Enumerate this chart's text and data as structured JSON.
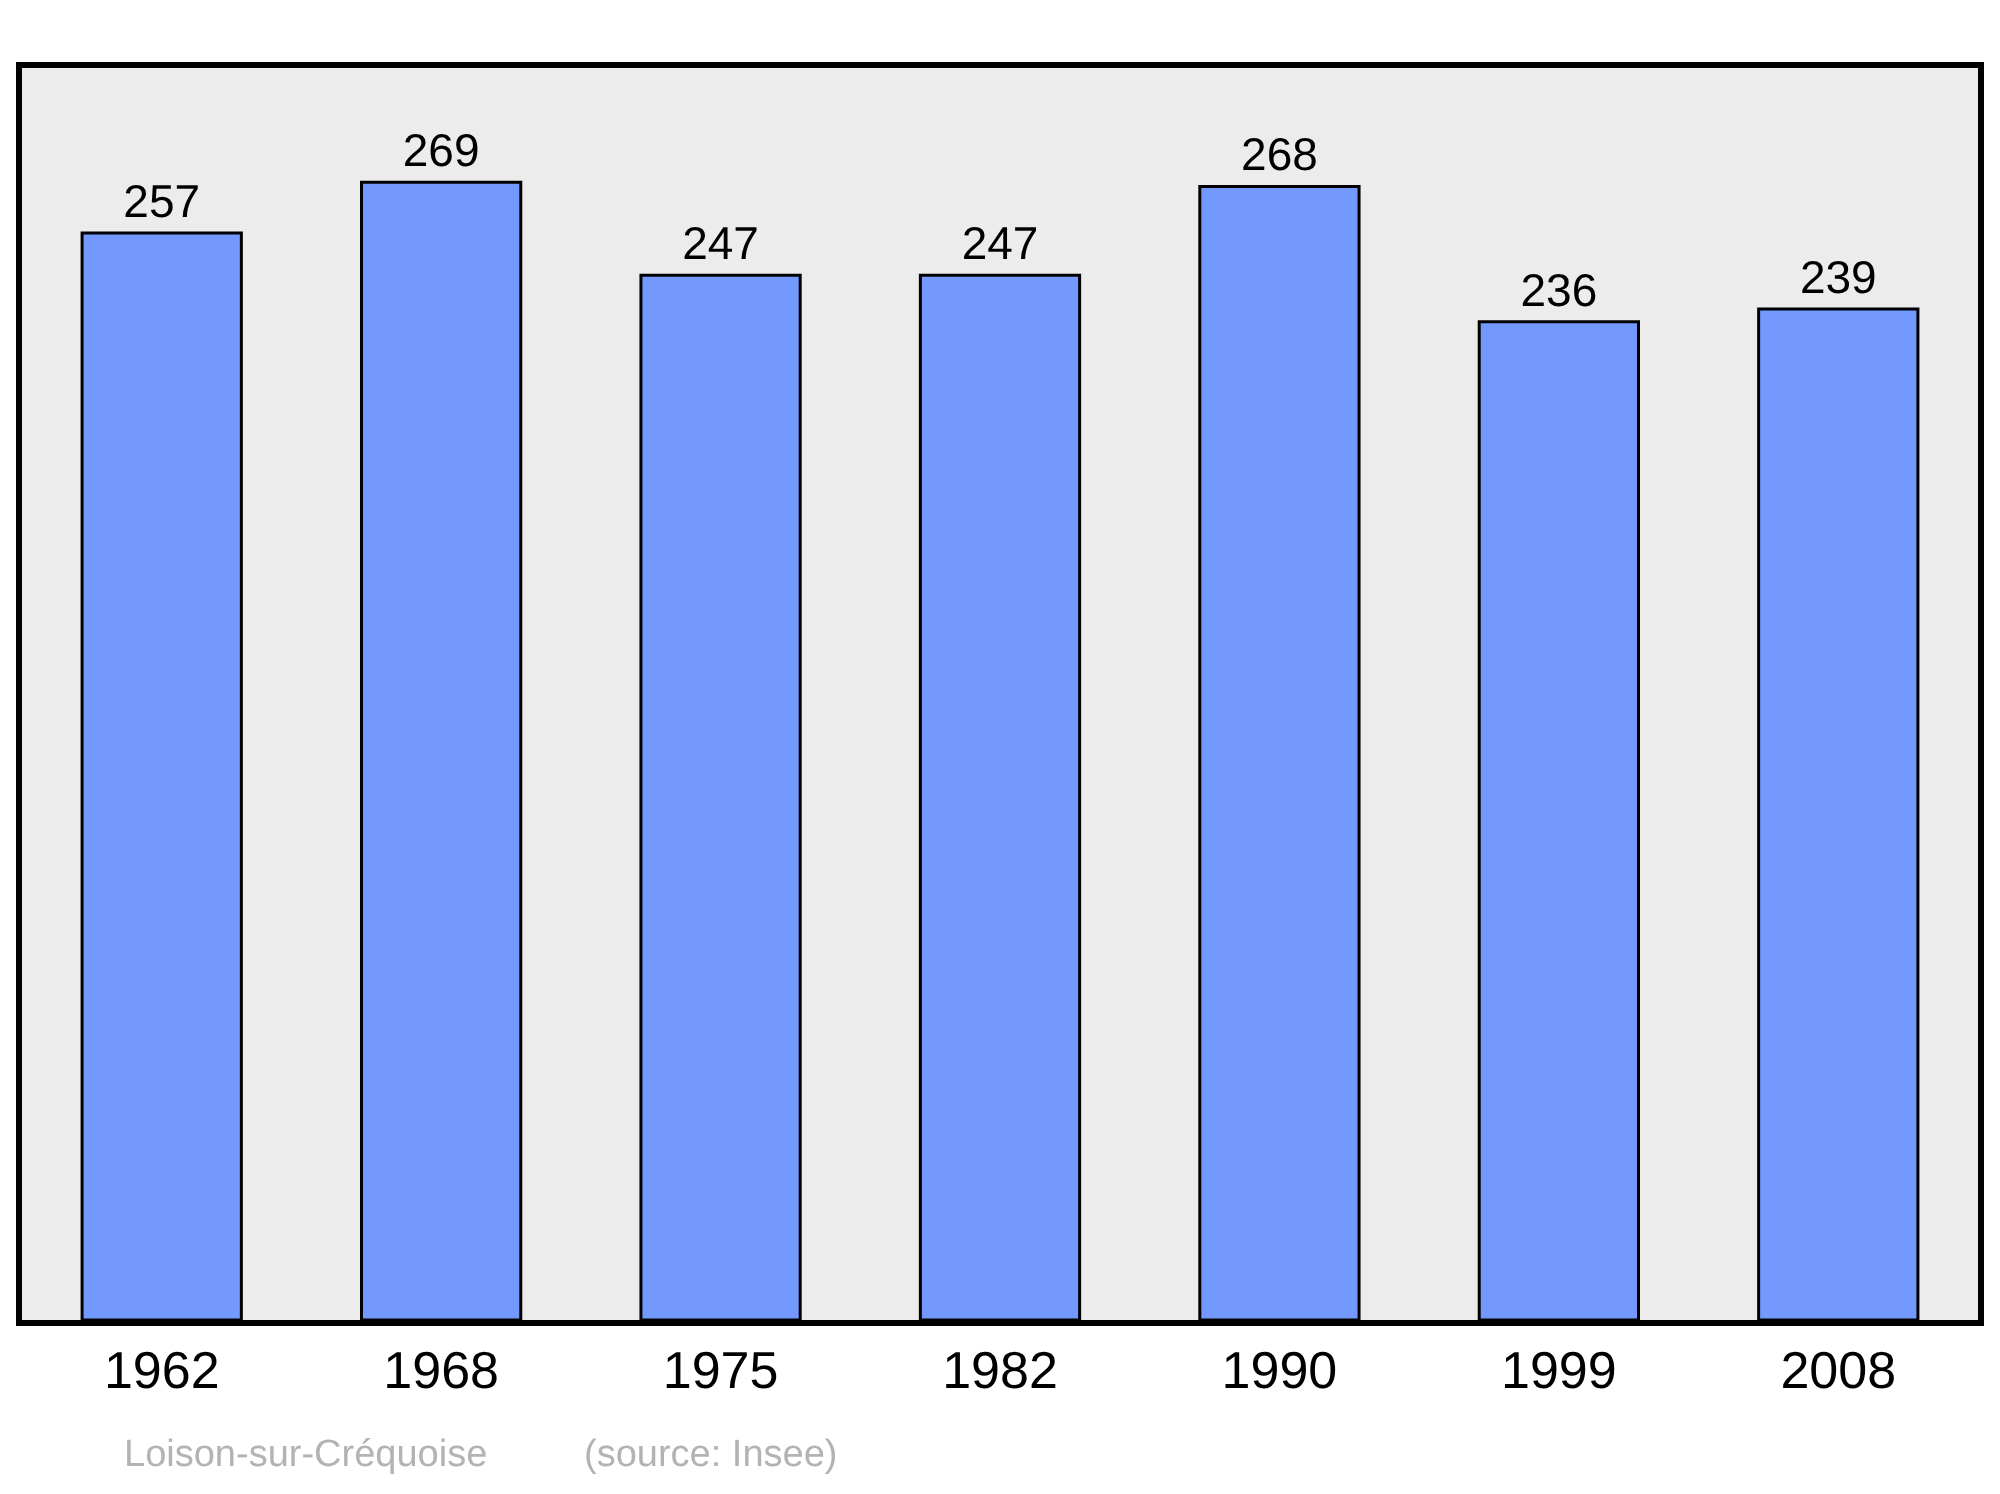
{
  "chart_data": {
    "type": "bar",
    "categories": [
      "1962",
      "1968",
      "1975",
      "1982",
      "1990",
      "1999",
      "2008"
    ],
    "values": [
      257,
      269,
      247,
      247,
      268,
      236,
      239
    ],
    "color": "#7399ff",
    "ylim": [
      0,
      296
    ],
    "data_labels": true,
    "tick_labels": "x",
    "grid": false,
    "annotations": [
      "Loison-sur-Créquoise",
      "(source: Insee)"
    ]
  }
}
